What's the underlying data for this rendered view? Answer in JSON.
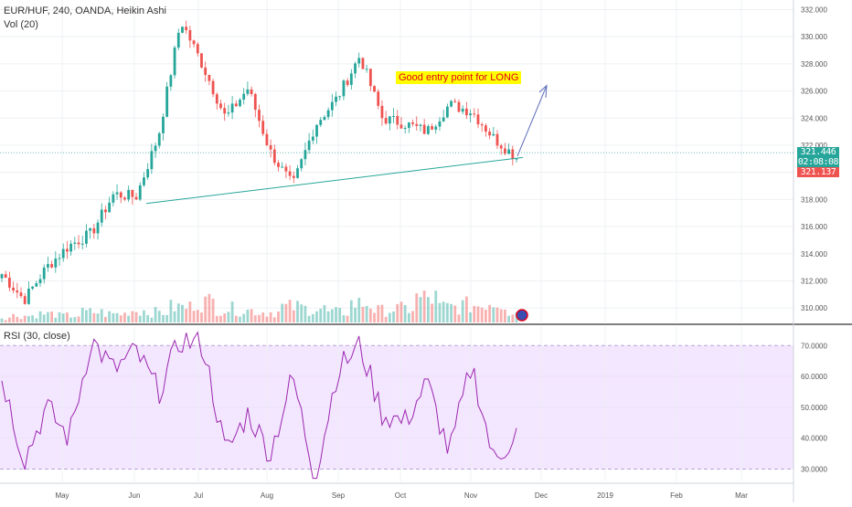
{
  "header": {
    "symbol_line": "EUR/HUF, 240, OANDA, Heikin Ashi",
    "volume_line": "Vol (20)"
  },
  "rsi_panel": {
    "legend": "RSI (30, close)"
  },
  "annotation": {
    "callout": "Good entry point for LONG"
  },
  "price_tags": [
    {
      "text": "321.446",
      "color": "#26a69a"
    },
    {
      "text": "02:08:08",
      "color": "#26a69a"
    },
    {
      "text": "321.137",
      "color": "#ef5350"
    }
  ],
  "colors": {
    "up": "#26a69a",
    "down": "#ef5350",
    "rsi_line": "#9c27b0",
    "rsi_band": "#f3e6ff",
    "trendline": "#26a69a",
    "arrow": "#5b6ab8"
  },
  "chart_data": [
    {
      "type": "candlestick",
      "title": "EUR/HUF, 240, OANDA, Heikin Ashi",
      "x_axis_ticks": [
        "May",
        "Jun",
        "Jul",
        "Aug",
        "Sep",
        "Oct",
        "Nov",
        "Dec",
        "2019",
        "Feb",
        "Mar"
      ],
      "y_axis_ticks": [
        "310.000",
        "312.000",
        "314.000",
        "316.000",
        "318.000",
        "320.000",
        "322.000",
        "324.000",
        "326.000",
        "328.000",
        "330.000",
        "332.000"
      ],
      "ylim": [
        309.0,
        332.3
      ],
      "series": [
        {
          "x": [
            "Apr 10",
            "Apr 20",
            "May 1",
            "May 10",
            "May 20",
            "Jun 1",
            "Jun 10",
            "Jun 20",
            "Jun 28",
            "Jul 1",
            "Jul 10",
            "Jul 20",
            "Aug 1",
            "Aug 8",
            "Aug 20",
            "Sep 1",
            "Sep 10",
            "Sep 20",
            "Oct 1",
            "Oct 10",
            "Oct 20",
            "Nov 1",
            "Nov 10",
            "Nov 20"
          ],
          "close": [
            312.5,
            310.6,
            313.0,
            314.6,
            315.5,
            318.4,
            318.2,
            322.7,
            331.2,
            327.8,
            324.0,
            326.2,
            321.5,
            319.0,
            323.5,
            325.5,
            328.6,
            324.0,
            323.6,
            323.0,
            325.0,
            324.5,
            322.5,
            321.1
          ]
        }
      ],
      "annotations": [
        "Good entry point for LONG"
      ]
    },
    {
      "type": "bar",
      "title": "Vol (20)",
      "values": [
        3,
        4,
        5,
        4,
        6,
        5,
        7,
        6,
        9,
        12,
        8,
        7,
        6,
        9,
        8,
        6,
        11,
        7,
        8,
        14,
        9,
        10,
        12,
        6
      ]
    },
    {
      "type": "line",
      "title": "RSI (30, close)",
      "y_axis_ticks": [
        "30.0000",
        "40.0000",
        "50.0000",
        "60.0000",
        "70.0000"
      ],
      "ylim": [
        26,
        76
      ],
      "band": [
        30,
        70
      ],
      "series": [
        {
          "values": [
            60,
            33,
            50,
            40,
            72,
            62,
            68,
            55,
            72,
            70,
            35,
            48,
            35,
            60,
            27,
            62,
            70,
            48,
            45,
            58,
            35,
            64,
            32,
            42
          ]
        }
      ]
    }
  ]
}
